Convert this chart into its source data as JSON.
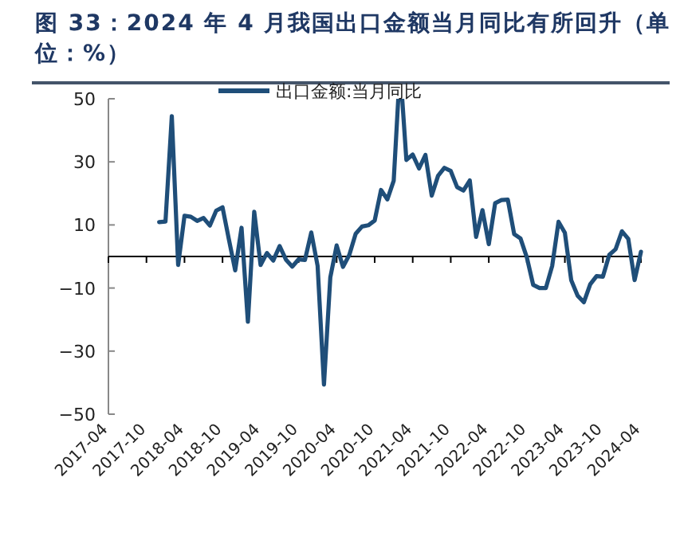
{
  "chart_data": {
    "type": "line",
    "title": "图 33：2024 年 4 月我国出口金额当月同比有所回升（单位：%）",
    "x": [
      "2017-12",
      "2018-01",
      "2018-02",
      "2018-03",
      "2018-04",
      "2018-05",
      "2018-06",
      "2018-07",
      "2018-08",
      "2018-09",
      "2018-10",
      "2018-11",
      "2018-12",
      "2019-01",
      "2019-02",
      "2019-03",
      "2019-04",
      "2019-05",
      "2019-06",
      "2019-07",
      "2019-08",
      "2019-09",
      "2019-10",
      "2019-11",
      "2019-12",
      "2020-01",
      "2020-02",
      "2020-03",
      "2020-04",
      "2020-05",
      "2020-06",
      "2020-07",
      "2020-08",
      "2020-09",
      "2020-10",
      "2020-11",
      "2020-12",
      "2021-01",
      "2021-02",
      "2021-03",
      "2021-04",
      "2021-05",
      "2021-06",
      "2021-07",
      "2021-08",
      "2021-09",
      "2021-10",
      "2021-11",
      "2021-12",
      "2022-01",
      "2022-02",
      "2022-03",
      "2022-04",
      "2022-05",
      "2022-06",
      "2022-07",
      "2022-08",
      "2022-09",
      "2022-10",
      "2022-11",
      "2022-12",
      "2023-01",
      "2023-02",
      "2023-03",
      "2023-04",
      "2023-05",
      "2023-06",
      "2023-07",
      "2023-08",
      "2023-09",
      "2023-10",
      "2023-11",
      "2023-12",
      "2024-01",
      "2024-02",
      "2024-03",
      "2024-04"
    ],
    "series": [
      {
        "name": "出口金额:当月同比",
        "color": "#1f4e79",
        "values": [
          10.9,
          11.1,
          44.5,
          -2.7,
          12.9,
          12.6,
          11.3,
          12.2,
          9.8,
          14.5,
          15.6,
          5.4,
          -4.4,
          9.1,
          -20.7,
          14.2,
          -2.7,
          1.1,
          -1.3,
          3.3,
          -1.0,
          -3.2,
          -0.9,
          -1.1,
          7.6,
          -3,
          -40.6,
          -6.6,
          3.5,
          -3.3,
          0.5,
          7.2,
          9.5,
          9.9,
          11.4,
          21.1,
          18.1,
          24,
          null,
          30.6,
          32.3,
          27.9,
          32.2,
          19.3,
          25.6,
          28.1,
          27.1,
          22.0,
          20.9,
          24.1,
          6.2,
          14.7,
          3.9,
          16.9,
          17.9,
          18.0,
          7.1,
          5.7,
          -0.3,
          -9,
          -10,
          -10,
          -3,
          11,
          7.5,
          -7.5,
          -12.4,
          -14.5,
          -8.8,
          -6.2,
          -6.4,
          0.5,
          2.3,
          8,
          5.6,
          -7.5,
          1.5
        ]
      }
    ],
    "xlim": [
      "2017-04",
      "2024-04"
    ],
    "xticks": [
      "2017-04",
      "2017-10",
      "2018-04",
      "2018-10",
      "2019-04",
      "2019-10",
      "2020-04",
      "2020-10",
      "2021-04",
      "2021-10",
      "2022-04",
      "2022-10",
      "2023-04",
      "2023-10",
      "2024-04"
    ],
    "ylim": [
      -50,
      50
    ],
    "yticks": [
      50,
      30,
      10,
      -10,
      -30,
      -50
    ],
    "grid": false,
    "legend": "top",
    "marker": "none",
    "line_style": "solid"
  }
}
